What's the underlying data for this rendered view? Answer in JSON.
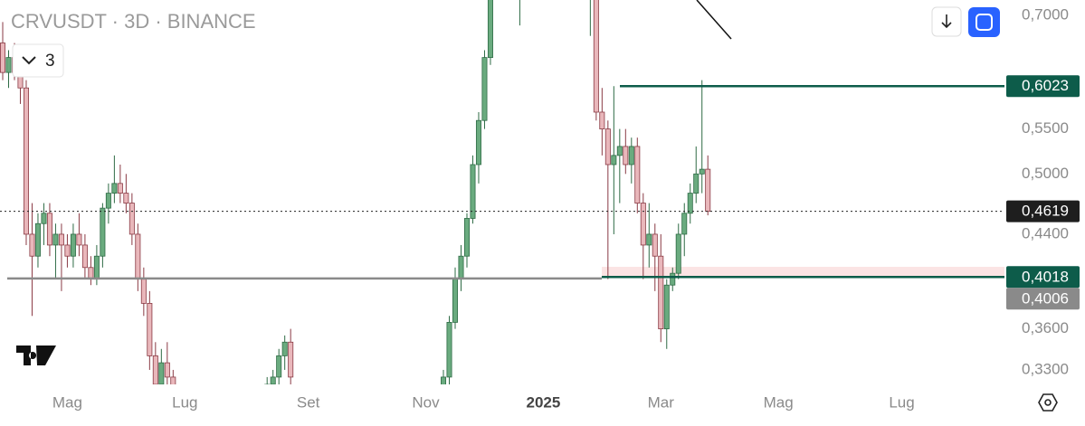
{
  "chart_data": {
    "type": "candlestick",
    "title": "CRVUSDT · 3D · BINANCE",
    "indicator_count": "3",
    "log_scale": true,
    "ylim": [
      0.32,
      0.723
    ],
    "yticks": [
      {
        "value": 0.7,
        "label": "0,7000"
      },
      {
        "value": 0.55,
        "label": "0,5500"
      },
      {
        "value": 0.5,
        "label": "0,5000"
      },
      {
        "value": 0.44,
        "label": "0,4400"
      },
      {
        "value": 0.36,
        "label": "0,3600"
      },
      {
        "value": 0.33,
        "label": "0,3300"
      }
    ],
    "up_color": "#6aab7f",
    "down_color": "#e9b7bb",
    "levels": [
      {
        "value": 0.6023,
        "label": "0,6023",
        "color": "#0d5c4a"
      },
      {
        "value": 0.4619,
        "label": "0,4619",
        "color": "#1e1e1e"
      },
      {
        "value": 0.4018,
        "label": "0,4018",
        "color": "#0d5c4a"
      },
      {
        "value": 0.4006,
        "label": "0,4006",
        "color": "#8a8a8a"
      }
    ],
    "zone": [
      0.4018,
      0.4106
    ],
    "categories": [
      null,
      null,
      null,
      null,
      null,
      null,
      null,
      null,
      null,
      null,
      null,
      "Mag",
      null,
      null,
      null,
      null,
      null,
      null,
      null,
      null,
      null,
      null,
      null,
      null,
      null,
      null,
      null,
      null,
      null,
      null,
      null,
      "Lug",
      null,
      null,
      null,
      null,
      null,
      null,
      null,
      null,
      null,
      null,
      null,
      null,
      null,
      null,
      null,
      null,
      null,
      null,
      null,
      null,
      "Set",
      null,
      null,
      null,
      null,
      null,
      null,
      null,
      null,
      null,
      null,
      null,
      null,
      null,
      null,
      null,
      null,
      null,
      null,
      null,
      "Nov",
      null,
      null,
      null,
      null,
      null,
      null,
      null,
      null,
      null,
      null,
      null,
      null,
      null,
      null,
      null,
      null,
      null,
      null,
      null,
      "2025",
      null,
      null,
      null,
      null,
      null,
      null,
      null,
      null,
      null,
      null,
      null,
      null,
      null,
      null,
      null,
      null,
      null,
      null,
      null,
      "Mar",
      null,
      null,
      null,
      null,
      null,
      null,
      null,
      null,
      null,
      null,
      null,
      null,
      null,
      null,
      null,
      null,
      null,
      null,
      null,
      "Mag",
      null,
      null,
      null,
      null,
      null,
      null,
      null,
      null,
      null,
      null,
      null,
      null,
      null,
      null,
      null,
      null,
      null,
      null,
      null,
      null,
      "Lug"
    ],
    "ohlc": [
      [
        0.66,
        0.69,
        0.61,
        0.62
      ],
      [
        0.62,
        0.65,
        0.6,
        0.64
      ],
      [
        0.64,
        0.66,
        0.61,
        0.62
      ],
      [
        0.62,
        0.64,
        0.58,
        0.6
      ],
      [
        0.6,
        0.61,
        0.43,
        0.44
      ],
      [
        0.44,
        0.47,
        0.37,
        0.42
      ],
      [
        0.42,
        0.46,
        0.41,
        0.45
      ],
      [
        0.45,
        0.47,
        0.43,
        0.46
      ],
      [
        0.46,
        0.47,
        0.42,
        0.43
      ],
      [
        0.43,
        0.45,
        0.4,
        0.44
      ],
      [
        0.44,
        0.45,
        0.39,
        0.43
      ],
      [
        0.43,
        0.44,
        0.41,
        0.42
      ],
      [
        0.42,
        0.45,
        0.41,
        0.44
      ],
      [
        0.44,
        0.46,
        0.42,
        0.43
      ],
      [
        0.43,
        0.44,
        0.4,
        0.41
      ],
      [
        0.41,
        0.42,
        0.395,
        0.4
      ],
      [
        0.4,
        0.43,
        0.395,
        0.42
      ],
      [
        0.42,
        0.47,
        0.41,
        0.465
      ],
      [
        0.465,
        0.49,
        0.45,
        0.48
      ],
      [
        0.48,
        0.52,
        0.47,
        0.49
      ],
      [
        0.49,
        0.51,
        0.47,
        0.48
      ],
      [
        0.48,
        0.5,
        0.46,
        0.47
      ],
      [
        0.47,
        0.48,
        0.43,
        0.44
      ],
      [
        0.44,
        0.45,
        0.39,
        0.4
      ],
      [
        0.4,
        0.41,
        0.37,
        0.38
      ],
      [
        0.38,
        0.39,
        0.33,
        0.34
      ],
      [
        0.34,
        0.35,
        0.31,
        0.32
      ],
      [
        0.32,
        0.345,
        0.31,
        0.335
      ],
      [
        0.335,
        0.35,
        0.31,
        0.325
      ],
      [
        0.325,
        0.33,
        0.3,
        0.31
      ],
      null,
      null,
      null,
      null,
      null,
      null,
      null,
      null,
      null,
      null,
      null,
      null,
      null,
      null,
      null,
      [
        0.31,
        0.325,
        0.3,
        0.32
      ],
      [
        0.32,
        0.33,
        0.31,
        0.325
      ],
      [
        0.325,
        0.345,
        0.31,
        0.34
      ],
      [
        0.34,
        0.355,
        0.33,
        0.35
      ],
      [
        0.35,
        0.36,
        0.32,
        0.325
      ],
      null,
      null,
      null,
      null,
      null,
      null,
      null,
      null,
      null,
      null,
      null,
      null,
      null,
      null,
      null,
      null,
      null,
      null,
      null,
      null,
      null,
      null,
      null,
      null,
      null,
      [
        0.31,
        0.33,
        0.3,
        0.325
      ],
      [
        0.325,
        0.37,
        0.32,
        0.365
      ],
      [
        0.365,
        0.41,
        0.36,
        0.4
      ],
      [
        0.4,
        0.43,
        0.39,
        0.42
      ],
      [
        0.42,
        0.46,
        0.41,
        0.455
      ],
      [
        0.455,
        0.52,
        0.45,
        0.51
      ],
      [
        0.51,
        0.57,
        0.49,
        0.56
      ],
      [
        0.56,
        0.65,
        0.55,
        0.64
      ],
      [
        0.64,
        0.75,
        0.63,
        0.74
      ],
      null,
      null,
      null,
      null,
      [
        0.77,
        0.8,
        0.685,
        0.78
      ],
      null,
      null,
      null,
      null,
      null,
      null,
      null,
      null,
      null,
      null,
      null,
      [
        0.75,
        0.78,
        0.67,
        0.76
      ],
      [
        0.76,
        0.77,
        0.56,
        0.57
      ],
      [
        0.57,
        0.6,
        0.52,
        0.55
      ],
      [
        0.55,
        0.56,
        0.4,
        0.51
      ],
      [
        0.51,
        0.6023,
        0.44,
        0.52
      ],
      [
        0.52,
        0.55,
        0.47,
        0.53
      ],
      [
        0.53,
        0.55,
        0.5,
        0.51
      ],
      [
        0.51,
        0.54,
        0.49,
        0.53
      ],
      [
        0.53,
        0.54,
        0.46,
        0.47
      ],
      [
        0.47,
        0.48,
        0.4,
        0.43
      ],
      [
        0.43,
        0.47,
        0.41,
        0.44
      ],
      [
        0.44,
        0.45,
        0.39,
        0.42
      ],
      [
        0.42,
        0.44,
        0.35,
        0.36
      ],
      [
        0.36,
        0.4,
        0.345,
        0.395
      ],
      [
        0.395,
        0.41,
        0.39,
        0.405
      ],
      [
        0.405,
        0.45,
        0.4,
        0.44
      ],
      [
        0.44,
        0.47,
        0.42,
        0.46
      ],
      [
        0.46,
        0.49,
        0.45,
        0.48
      ],
      [
        0.48,
        0.53,
        0.47,
        0.5
      ],
      [
        0.5,
        0.61,
        0.48,
        0.505
      ],
      [
        0.505,
        0.52,
        0.458,
        0.4619
      ],
      null,
      null,
      null,
      null,
      null,
      null,
      null,
      null,
      null,
      null,
      null,
      null,
      null,
      null,
      null,
      null,
      null,
      null,
      null,
      null,
      null,
      null,
      null,
      null,
      null,
      null,
      null,
      null,
      null,
      null,
      null,
      null,
      null
    ]
  }
}
